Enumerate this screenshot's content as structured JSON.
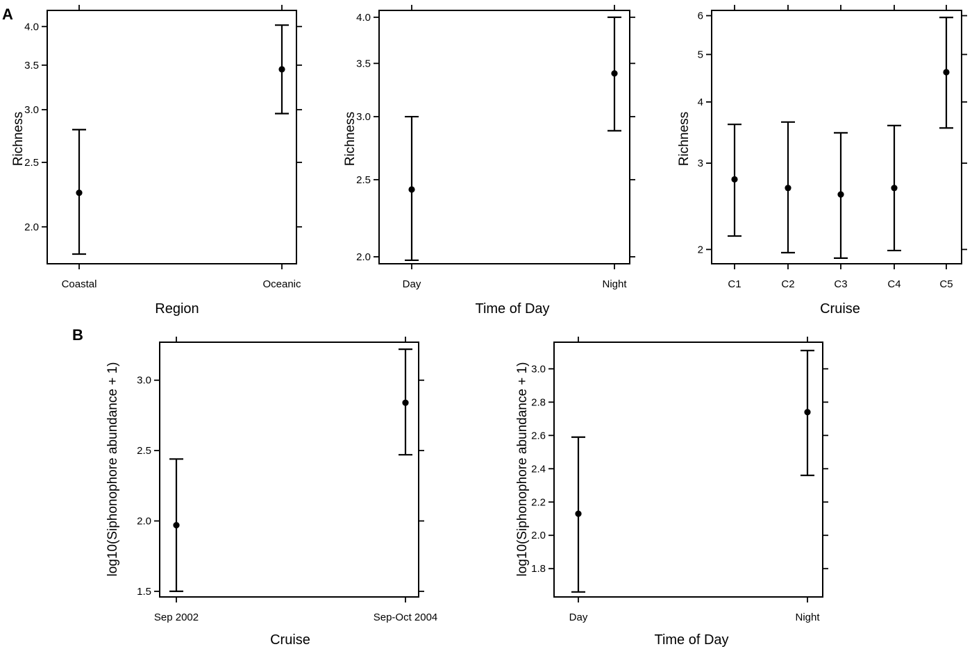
{
  "panel_labels": {
    "A": "A",
    "B": "B"
  },
  "chart_data": [
    {
      "type": "scatter",
      "panel": "A",
      "xlabel": "Region",
      "ylabel": "Richness",
      "y_scale": "log",
      "ylim": [
        1.76,
        4.23
      ],
      "yticks": [
        2.0,
        2.5,
        3.0,
        3.5,
        4.0
      ],
      "ytick_labels": [
        "2.0",
        "2.5",
        "3.0",
        "3.5",
        "4.0"
      ],
      "categories": [
        "Coastal",
        "Oceanic"
      ],
      "values": [
        2.25,
        3.45
      ],
      "lower": [
        1.82,
        2.96
      ],
      "upper": [
        2.8,
        4.02
      ]
    },
    {
      "type": "scatter",
      "panel": "A",
      "xlabel": "Time of Day",
      "ylabel": "Richness",
      "y_scale": "log",
      "ylim": [
        1.96,
        4.08
      ],
      "yticks": [
        2.0,
        2.5,
        3.0,
        3.5,
        4.0
      ],
      "ytick_labels": [
        "2.0",
        "2.5",
        "3.0",
        "3.5",
        "4.0"
      ],
      "categories": [
        "Day",
        "Night"
      ],
      "values": [
        2.43,
        3.4
      ],
      "lower": [
        1.98,
        2.88
      ],
      "upper": [
        3.0,
        4.0
      ]
    },
    {
      "type": "scatter",
      "panel": "A",
      "xlabel": "Cruise",
      "ylabel": "Richness",
      "y_scale": "log",
      "ylim": [
        1.87,
        6.15
      ],
      "yticks": [
        2,
        3,
        4,
        5,
        6
      ],
      "ytick_labels": [
        "2",
        "3",
        "4",
        "5",
        "6"
      ],
      "categories": [
        "C1",
        "C2",
        "C3",
        "C4",
        "C5"
      ],
      "values": [
        2.78,
        2.67,
        2.59,
        2.67,
        4.6
      ],
      "lower": [
        2.13,
        1.97,
        1.92,
        1.99,
        3.54
      ],
      "upper": [
        3.6,
        3.64,
        3.46,
        3.58,
        5.95
      ]
    },
    {
      "type": "scatter",
      "panel": "B",
      "xlabel": "Cruise",
      "ylabel": "log10(Siphonophore abundance + 1)",
      "y_scale": "linear",
      "ylim": [
        1.46,
        3.27
      ],
      "yticks": [
        1.5,
        2.0,
        2.5,
        3.0
      ],
      "ytick_labels": [
        "1.5",
        "2.0",
        "2.5",
        "3.0"
      ],
      "categories": [
        "Sep 2002",
        "Sep-Oct 2004"
      ],
      "values": [
        1.97,
        2.84
      ],
      "lower": [
        1.5,
        2.47
      ],
      "upper": [
        2.44,
        3.22
      ]
    },
    {
      "type": "scatter",
      "panel": "B",
      "xlabel": "Time of Day",
      "ylabel": "log10(Siphonophore abundance + 1)",
      "y_scale": "linear",
      "ylim": [
        1.63,
        3.16
      ],
      "yticks": [
        1.8,
        2.0,
        2.2,
        2.4,
        2.6,
        2.8,
        3.0
      ],
      "ytick_labels": [
        "1.8",
        "2.0",
        "2.2",
        "2.4",
        "2.6",
        "2.8",
        "3.0"
      ],
      "categories": [
        "Day",
        "Night"
      ],
      "values": [
        2.13,
        2.74
      ],
      "lower": [
        1.66,
        2.36
      ],
      "upper": [
        2.59,
        3.11
      ]
    }
  ]
}
